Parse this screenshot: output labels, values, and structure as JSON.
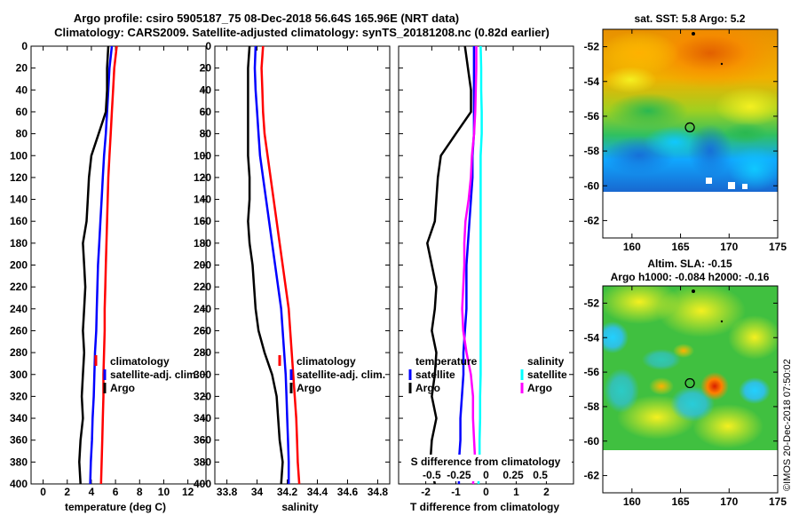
{
  "header": {
    "title_line1": "Argo profile: csiro 5905187_75 08-Dec-2018 56.64S 165.96E (NRT data)",
    "title_line2": "Climatology: CARS2009. Satellite-adjusted climatology: synTS_20181208.nc (0.82d earlier)"
  },
  "colors": {
    "climatology": "#ff0000",
    "satellite": "#0000ff",
    "argo": "#000000",
    "sal_satellite": "#00ffff",
    "sal_argo": "#ff00ff"
  },
  "chart_data": [
    {
      "type": "line",
      "id": "temperature",
      "xlabel": "temperature (deg C)",
      "ylabel": "",
      "xlim": [
        -1,
        13.5
      ],
      "ylim": [
        400,
        0
      ],
      "xticks": [
        "0",
        "2",
        "4",
        "6",
        "8",
        "10",
        "12"
      ],
      "yticks": [
        "0",
        "20",
        "40",
        "60",
        "80",
        "100",
        "120",
        "140",
        "160",
        "180",
        "200",
        "220",
        "240",
        "260",
        "280",
        "300",
        "320",
        "340",
        "360",
        "380",
        "400"
      ],
      "legend": [
        "climatology",
        "satellite-adj. clim.",
        "Argo"
      ],
      "depth": [
        0,
        20,
        40,
        60,
        80,
        100,
        120,
        140,
        160,
        180,
        200,
        220,
        240,
        260,
        280,
        300,
        320,
        340,
        360,
        380,
        400
      ],
      "series": [
        {
          "name": "climatology",
          "values": [
            6.1,
            5.9,
            5.8,
            5.7,
            5.6,
            5.5,
            5.4,
            5.35,
            5.3,
            5.25,
            5.2,
            5.15,
            5.1,
            5.1,
            5.05,
            5.0,
            5.0,
            4.95,
            4.9,
            4.85,
            4.8
          ]
        },
        {
          "name": "satellite-adj. clim.",
          "values": [
            5.7,
            5.5,
            5.4,
            5.3,
            5.2,
            5.05,
            4.95,
            4.85,
            4.75,
            4.65,
            4.55,
            4.5,
            4.45,
            4.4,
            4.3,
            4.25,
            4.2,
            4.1,
            4.05,
            3.95,
            3.9
          ]
        },
        {
          "name": "Argo",
          "values": [
            5.4,
            5.3,
            5.3,
            5.2,
            4.6,
            4.0,
            3.8,
            3.7,
            3.6,
            3.3,
            3.4,
            3.5,
            3.4,
            3.3,
            3.4,
            3.3,
            3.2,
            3.3,
            3.1,
            3.0,
            3.1
          ]
        }
      ]
    },
    {
      "type": "line",
      "id": "salinity",
      "xlabel": "salinity",
      "ylabel": "",
      "xlim": [
        33.72,
        34.88
      ],
      "ylim": [
        400,
        0
      ],
      "xticks": [
        "33.8",
        "34",
        "34.2",
        "34.4",
        "34.6",
        "34.8"
      ],
      "legend": [
        "climatology",
        "satellite-adj. clim.",
        "Argo"
      ],
      "depth": [
        0,
        20,
        40,
        60,
        80,
        100,
        120,
        140,
        160,
        180,
        200,
        220,
        240,
        260,
        280,
        300,
        320,
        340,
        360,
        380,
        400
      ],
      "series": [
        {
          "name": "climatology",
          "values": [
            34.04,
            34.03,
            34.035,
            34.04,
            34.05,
            34.07,
            34.09,
            34.11,
            34.13,
            34.15,
            34.17,
            34.19,
            34.21,
            34.22,
            34.23,
            34.24,
            34.25,
            34.26,
            34.265,
            34.27,
            34.28
          ]
        },
        {
          "name": "satellite-adj. clim.",
          "values": [
            33.99,
            33.985,
            33.99,
            34.0,
            34.01,
            34.02,
            34.04,
            34.06,
            34.08,
            34.1,
            34.12,
            34.14,
            34.16,
            34.17,
            34.18,
            34.19,
            34.195,
            34.2,
            34.205,
            34.21,
            34.21
          ]
        },
        {
          "name": "Argo",
          "values": [
            33.95,
            33.94,
            33.94,
            33.94,
            33.94,
            33.94,
            33.95,
            33.95,
            33.94,
            33.95,
            33.97,
            33.98,
            33.99,
            34.01,
            34.05,
            34.1,
            34.13,
            34.14,
            34.15,
            34.17,
            34.16
          ]
        }
      ]
    },
    {
      "type": "line",
      "id": "difference",
      "xlabel": "T difference from climatology",
      "ylabel": "",
      "top_label": "S difference from climatology",
      "xlim": [
        -2.9,
        2.9
      ],
      "ylim": [
        400,
        0
      ],
      "xticks": [
        "-2",
        "-1",
        "0",
        "1",
        "2"
      ],
      "top_ticks": [
        "-0.5",
        "-0.25",
        "0",
        "0.25",
        "0.5"
      ],
      "legend_temperature": {
        "title": "temperature",
        "items": [
          "satellite",
          "Argo"
        ]
      },
      "legend_salinity": {
        "title": "salinity",
        "items": [
          "satellite",
          "Argo"
        ]
      },
      "depth": [
        0,
        20,
        40,
        60,
        80,
        100,
        120,
        140,
        160,
        180,
        200,
        220,
        240,
        260,
        280,
        300,
        320,
        340,
        360,
        380,
        400
      ],
      "series": [
        {
          "name": "T satellite",
          "values": [
            -0.4,
            -0.4,
            -0.4,
            -0.4,
            -0.4,
            -0.45,
            -0.45,
            -0.5,
            -0.55,
            -0.6,
            -0.65,
            -0.65,
            -0.65,
            -0.7,
            -0.75,
            -0.75,
            -0.8,
            -0.85,
            -0.85,
            -0.9,
            -0.9
          ]
        },
        {
          "name": "T Argo",
          "values": [
            -0.7,
            -0.6,
            -0.5,
            -0.5,
            -1.0,
            -1.5,
            -1.6,
            -1.65,
            -1.7,
            -1.95,
            -1.8,
            -1.65,
            -1.7,
            -1.8,
            -1.65,
            -1.7,
            -1.8,
            -1.65,
            -1.8,
            -1.85,
            -1.7
          ]
        },
        {
          "name": "S satellite",
          "values": [
            -0.05,
            -0.045,
            -0.045,
            -0.04,
            -0.04,
            -0.05,
            -0.05,
            -0.05,
            -0.05,
            -0.05,
            -0.05,
            -0.05,
            -0.05,
            -0.05,
            -0.05,
            -0.05,
            -0.055,
            -0.055,
            -0.06,
            -0.06,
            -0.07
          ]
        },
        {
          "name": "S Argo",
          "values": [
            -0.09,
            -0.09,
            -0.095,
            -0.1,
            -0.11,
            -0.13,
            -0.14,
            -0.16,
            -0.19,
            -0.2,
            -0.2,
            -0.21,
            -0.22,
            -0.21,
            -0.18,
            -0.14,
            -0.12,
            -0.12,
            -0.11,
            -0.1,
            -0.12
          ]
        }
      ]
    },
    {
      "type": "heatmap",
      "id": "sst_map",
      "title": "sat. SST: 5.8 Argo: 5.2",
      "xlim": [
        157,
        175
      ],
      "ylim": [
        -63,
        -51
      ],
      "xticks": [
        "160",
        "165",
        "170",
        "175"
      ],
      "yticks": [
        "-52",
        "-54",
        "-56",
        "-58",
        "-60",
        "-62"
      ],
      "argo_position": {
        "lon": 165.96,
        "lat": -56.64
      }
    },
    {
      "type": "heatmap",
      "id": "sla_map",
      "title": "Altim. SLA: -0.15",
      "subtitle": "Argo h1000: -0.084 h2000: -0.16",
      "xlim": [
        157,
        175
      ],
      "ylim": [
        -63,
        -51
      ],
      "xticks": [
        "160",
        "165",
        "170",
        "175"
      ],
      "yticks": [
        "-52",
        "-54",
        "-56",
        "-58",
        "-60",
        "-62"
      ],
      "argo_position": {
        "lon": 165.96,
        "lat": -56.64
      }
    }
  ],
  "footer": {
    "credit": "©IMOS 20-Dec-2018 07:50:02"
  }
}
